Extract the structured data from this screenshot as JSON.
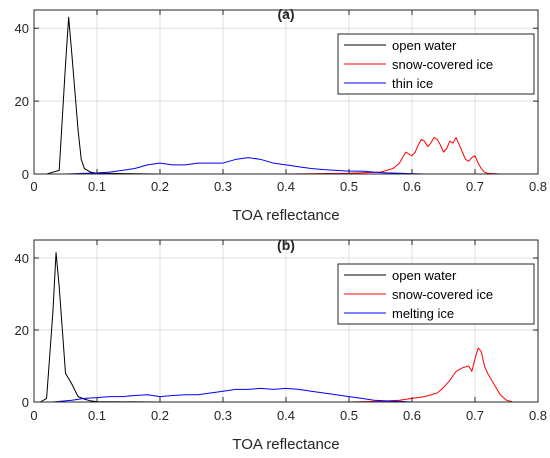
{
  "chart_data": [
    {
      "type": "line",
      "title": "(a)",
      "xlabel": "TOA reflectance",
      "ylabel": "",
      "xlim": [
        0,
        0.8
      ],
      "ylim": [
        0,
        45
      ],
      "xticks": [
        "0",
        "0.1",
        "0.2",
        "0.3",
        "0.4",
        "0.5",
        "0.6",
        "0.7",
        "0.8"
      ],
      "yticks": [
        "0",
        "20",
        "40"
      ],
      "legend_position": "top-right",
      "grid": true,
      "series": [
        {
          "name": "open water",
          "color": "#000000",
          "x": [
            0,
            0.02,
            0.03,
            0.04,
            0.05,
            0.055,
            0.06,
            0.07,
            0.075,
            0.08,
            0.09,
            0.1,
            0.2,
            0.4,
            0.6,
            0.8
          ],
          "y": [
            0,
            0,
            0.5,
            1,
            30,
            43,
            33,
            12,
            4,
            1.5,
            0.5,
            0.2,
            0,
            0,
            0,
            0
          ]
        },
        {
          "name": "snow-covered ice",
          "color": "#ff0000",
          "x": [
            0,
            0.2,
            0.4,
            0.5,
            0.55,
            0.57,
            0.58,
            0.59,
            0.6,
            0.605,
            0.61,
            0.615,
            0.62,
            0.625,
            0.63,
            0.635,
            0.64,
            0.645,
            0.65,
            0.655,
            0.66,
            0.665,
            0.67,
            0.675,
            0.68,
            0.685,
            0.69,
            0.695,
            0.7,
            0.705,
            0.71,
            0.715,
            0.72,
            0.73,
            0.74,
            0.8
          ],
          "y": [
            0,
            0,
            0,
            0.2,
            0.5,
            1.5,
            3,
            6,
            5,
            6,
            8,
            9.5,
            9,
            7.5,
            8.5,
            10,
            9.5,
            8,
            6,
            7,
            9,
            8.5,
            10,
            8,
            6,
            4,
            3.5,
            4.5,
            5,
            3,
            1.5,
            0.5,
            0.2,
            0.1,
            0,
            0
          ]
        },
        {
          "name": "thin ice",
          "color": "#0000ff",
          "x": [
            0,
            0.05,
            0.1,
            0.12,
            0.14,
            0.16,
            0.18,
            0.2,
            0.22,
            0.24,
            0.26,
            0.28,
            0.3,
            0.32,
            0.34,
            0.36,
            0.38,
            0.4,
            0.42,
            0.44,
            0.46,
            0.48,
            0.5,
            0.52,
            0.54,
            0.56,
            0.58,
            0.6,
            0.62,
            0.8
          ],
          "y": [
            0,
            0,
            0.3,
            0.5,
            1,
            1.5,
            2.5,
            3,
            2.5,
            2.5,
            3,
            3,
            3,
            4,
            4.5,
            4,
            3,
            2.5,
            2,
            1.5,
            1.2,
            1,
            0.8,
            0.8,
            0.5,
            0.3,
            0.2,
            0.1,
            0,
            0
          ]
        }
      ]
    },
    {
      "type": "line",
      "title": "(b)",
      "xlabel": "TOA reflectance",
      "ylabel": "",
      "xlim": [
        0,
        0.8
      ],
      "ylim": [
        0,
        45
      ],
      "xticks": [
        "0",
        "0.1",
        "0.2",
        "0.3",
        "0.4",
        "0.5",
        "0.6",
        "0.7",
        "0.8"
      ],
      "yticks": [
        "0",
        "20",
        "40"
      ],
      "legend_position": "top-right",
      "grid": true,
      "series": [
        {
          "name": "open water",
          "color": "#000000",
          "x": [
            0,
            0.01,
            0.02,
            0.03,
            0.035,
            0.04,
            0.05,
            0.06,
            0.07,
            0.08,
            0.09,
            0.1,
            0.2,
            0.4,
            0.6,
            0.8
          ],
          "y": [
            0,
            0,
            1,
            25,
            41.5,
            32,
            8,
            5,
            1.5,
            0.8,
            0.3,
            0.1,
            0,
            0,
            0,
            0
          ]
        },
        {
          "name": "snow-covered ice",
          "color": "#ff0000",
          "x": [
            0,
            0.2,
            0.4,
            0.5,
            0.55,
            0.58,
            0.6,
            0.62,
            0.64,
            0.65,
            0.66,
            0.67,
            0.68,
            0.69,
            0.695,
            0.7,
            0.705,
            0.71,
            0.715,
            0.72,
            0.73,
            0.74,
            0.75,
            0.76,
            0.8
          ],
          "y": [
            0,
            0,
            0,
            0,
            0.2,
            0.5,
            1,
            1.5,
            2.5,
            4,
            6,
            8.5,
            9.5,
            10,
            8.5,
            12,
            15,
            14,
            10,
            8,
            5,
            2,
            0.5,
            0,
            0
          ]
        },
        {
          "name": "melting ice",
          "color": "#0000ff",
          "x": [
            0,
            0.03,
            0.06,
            0.08,
            0.1,
            0.12,
            0.14,
            0.16,
            0.18,
            0.2,
            0.22,
            0.24,
            0.26,
            0.28,
            0.3,
            0.32,
            0.34,
            0.36,
            0.38,
            0.4,
            0.42,
            0.44,
            0.46,
            0.48,
            0.5,
            0.52,
            0.54,
            0.56,
            0.58,
            0.6,
            0.8
          ],
          "y": [
            0,
            0,
            0.5,
            1,
            1.2,
            1.5,
            1.5,
            1.8,
            2,
            1.5,
            1.8,
            2,
            2,
            2.5,
            3,
            3.5,
            3.5,
            3.8,
            3.5,
            3.8,
            3.5,
            3,
            2.5,
            2,
            1.5,
            1,
            0.5,
            0.3,
            0.2,
            0,
            0
          ]
        }
      ]
    }
  ]
}
